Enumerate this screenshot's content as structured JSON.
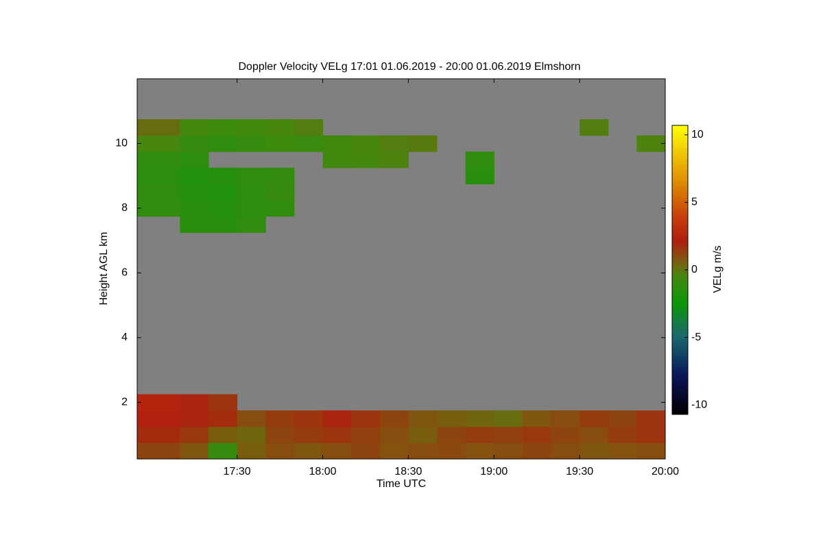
{
  "chart_data": {
    "type": "heatmap",
    "title": "Doppler Velocity VELg   17:01 01.06.2019 - 20:00 01.06.2019 Elmshorn",
    "x_label": "Time UTC",
    "y_label": "Height AGL km",
    "colorbar_label": "VELg m/s",
    "xlim": [
      1015,
      1200
    ],
    "xticks": [
      {
        "value": 1050,
        "label": "17:30"
      },
      {
        "value": 1080,
        "label": "18:00"
      },
      {
        "value": 1110,
        "label": "18:30"
      },
      {
        "value": 1140,
        "label": "19:00"
      },
      {
        "value": 1170,
        "label": "19:30"
      },
      {
        "value": 1200,
        "label": "20:00"
      }
    ],
    "ylim": [
      0.25,
      12
    ],
    "yticks": [
      2,
      4,
      6,
      8,
      10
    ],
    "zlim": [
      -10.7,
      10.7
    ],
    "zticks": [
      -10,
      -5,
      0,
      5,
      10
    ],
    "background": "#808080",
    "xbins": [
      1015,
      1030,
      1040,
      1050,
      1060,
      1070,
      1080,
      1090,
      1100,
      1110,
      1120,
      1130,
      1140,
      1150,
      1160,
      1170,
      1180,
      1190,
      1200
    ],
    "ybins": [
      0.25,
      0.75,
      1.25,
      1.75,
      2.25,
      2.75,
      3.25,
      3.75,
      4.25,
      4.75,
      5.25,
      5.75,
      6.25,
      6.75,
      7.25,
      7.75,
      8.25,
      8.75,
      9.25,
      9.75,
      10.25,
      10.75,
      11.25,
      11.75
    ],
    "z": [
      [
        1.2,
        0.8,
        -1.0,
        0.6,
        1.0,
        0.8,
        1.0,
        1.2,
        0.9,
        1.0,
        1.1,
        0.9,
        1.0,
        1.2,
        1.0,
        0.8,
        0.9,
        1.0
      ],
      [
        1.8,
        1.5,
        0.6,
        0.4,
        1.2,
        1.4,
        1.6,
        1.3,
        1.0,
        0.6,
        1.2,
        1.4,
        1.3,
        1.5,
        1.2,
        1.0,
        1.4,
        1.6
      ],
      [
        2.2,
        2.0,
        1.8,
        1.0,
        1.4,
        1.6,
        2.0,
        1.6,
        1.2,
        0.8,
        0.6,
        0.4,
        0.2,
        0.8,
        1.0,
        1.4,
        1.2,
        1.6
      ],
      [
        2.4,
        2.0,
        1.6,
        null,
        null,
        null,
        null,
        null,
        null,
        null,
        null,
        null,
        null,
        null,
        null,
        null,
        null,
        null
      ],
      [
        null,
        null,
        null,
        null,
        null,
        null,
        null,
        null,
        null,
        null,
        null,
        null,
        null,
        null,
        null,
        null,
        null,
        null
      ],
      [
        null,
        null,
        null,
        null,
        null,
        null,
        null,
        null,
        null,
        null,
        null,
        null,
        null,
        null,
        null,
        null,
        null,
        null
      ],
      [
        null,
        null,
        null,
        null,
        null,
        null,
        null,
        null,
        null,
        null,
        null,
        null,
        null,
        null,
        null,
        null,
        null,
        null
      ],
      [
        null,
        null,
        null,
        null,
        null,
        null,
        null,
        null,
        null,
        null,
        null,
        null,
        null,
        null,
        null,
        null,
        null,
        null
      ],
      [
        null,
        null,
        null,
        null,
        null,
        null,
        null,
        null,
        null,
        null,
        null,
        null,
        null,
        null,
        null,
        null,
        null,
        null
      ],
      [
        null,
        null,
        null,
        null,
        null,
        null,
        null,
        null,
        null,
        null,
        null,
        null,
        null,
        null,
        null,
        null,
        null,
        null
      ],
      [
        null,
        null,
        null,
        null,
        null,
        null,
        null,
        null,
        null,
        null,
        null,
        null,
        null,
        null,
        null,
        null,
        null,
        null
      ],
      [
        null,
        null,
        null,
        null,
        null,
        null,
        null,
        null,
        null,
        null,
        null,
        null,
        null,
        null,
        null,
        null,
        null,
        null
      ],
      [
        null,
        null,
        null,
        null,
        null,
        null,
        null,
        null,
        null,
        null,
        null,
        null,
        null,
        null,
        null,
        null,
        null,
        null
      ],
      [
        null,
        null,
        null,
        null,
        null,
        null,
        null,
        null,
        null,
        null,
        null,
        null,
        null,
        null,
        null,
        null,
        null,
        null
      ],
      [
        null,
        -1.5,
        -1.5,
        -1.2,
        null,
        null,
        null,
        null,
        null,
        null,
        null,
        null,
        null,
        null,
        null,
        null,
        null,
        null
      ],
      [
        -1.2,
        -1.5,
        -1.6,
        -1.4,
        -1.2,
        null,
        null,
        null,
        null,
        null,
        null,
        null,
        null,
        null,
        null,
        null,
        null,
        null
      ],
      [
        -1.2,
        -1.6,
        -1.8,
        -1.3,
        -1.0,
        null,
        null,
        null,
        null,
        null,
        null,
        null,
        null,
        null,
        null,
        null,
        null,
        null
      ],
      [
        -1.4,
        -1.8,
        -1.6,
        -1.2,
        -1.1,
        null,
        null,
        null,
        null,
        null,
        null,
        -1.5,
        null,
        null,
        null,
        null,
        null,
        null
      ],
      [
        -1.2,
        -1.4,
        null,
        null,
        null,
        null,
        -0.6,
        -0.5,
        -0.3,
        null,
        null,
        -1.2,
        null,
        null,
        null,
        null,
        null,
        null
      ],
      [
        -0.4,
        -1.0,
        -1.2,
        -1.0,
        -0.8,
        -0.9,
        -0.6,
        -0.4,
        -0.2,
        -0.1,
        null,
        null,
        null,
        null,
        null,
        null,
        null,
        -0.3
      ],
      [
        0.2,
        -0.5,
        -0.8,
        -0.6,
        -0.4,
        -0.2,
        null,
        null,
        null,
        null,
        null,
        null,
        null,
        null,
        null,
        -0.2,
        null,
        null
      ],
      [
        null,
        null,
        null,
        null,
        null,
        null,
        null,
        null,
        null,
        null,
        null,
        null,
        null,
        null,
        null,
        null,
        null,
        null
      ],
      [
        null,
        null,
        null,
        null,
        null,
        null,
        null,
        null,
        null,
        null,
        null,
        null,
        null,
        null,
        null,
        null,
        null,
        null
      ]
    ]
  }
}
